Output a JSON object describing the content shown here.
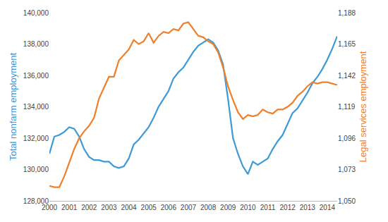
{
  "chart_data": {
    "type": "line",
    "x": [
      2000,
      2000.25,
      2000.5,
      2000.75,
      2001,
      2001.25,
      2001.5,
      2001.75,
      2002,
      2002.25,
      2002.5,
      2002.75,
      2003,
      2003.25,
      2003.5,
      2003.75,
      2004,
      2004.25,
      2004.5,
      2004.75,
      2005,
      2005.25,
      2005.5,
      2005.75,
      2006,
      2006.25,
      2006.5,
      2006.75,
      2007,
      2007.25,
      2007.5,
      2007.75,
      2008,
      2008.25,
      2008.5,
      2008.75,
      2009,
      2009.25,
      2009.5,
      2009.75,
      2010,
      2010.25,
      2010.5,
      2010.75,
      2011,
      2011.25,
      2011.5,
      2011.75,
      2012,
      2012.25,
      2012.5,
      2012.75,
      2013,
      2013.25,
      2013.5,
      2013.75,
      2014,
      2014.25,
      2014.5
    ],
    "series": [
      {
        "name": "Total nonfarm employment",
        "color": "#3c9ad6",
        "axis": "y",
        "values": [
          131000,
          132100,
          132200,
          132400,
          132700,
          132600,
          132100,
          131300,
          130800,
          130600,
          130600,
          130500,
          130500,
          130200,
          130100,
          130200,
          130700,
          131600,
          131900,
          132300,
          132700,
          133300,
          134000,
          134500,
          135000,
          135800,
          136200,
          136500,
          137000,
          137500,
          137900,
          138100,
          138300,
          138100,
          137600,
          136700,
          134500,
          132000,
          131000,
          130200,
          129700,
          130500,
          130300,
          130500,
          130700,
          131300,
          131800,
          132200,
          132900,
          133600,
          133900,
          134400,
          134900,
          135500,
          135900,
          136400,
          137000,
          137700,
          138500
        ]
      },
      {
        "name": "Legal services employment",
        "color": "#f07f2a",
        "axis": "y2",
        "values": [
          1061,
          1060,
          1060,
          1068,
          1078,
          1088,
          1096,
          1101,
          1105,
          1111,
          1125,
          1133,
          1141,
          1141,
          1153,
          1157,
          1161,
          1168,
          1165,
          1167,
          1173,
          1166,
          1171,
          1174,
          1173,
          1176,
          1175,
          1180,
          1181,
          1176,
          1171,
          1170,
          1167,
          1165,
          1159,
          1148,
          1134,
          1124,
          1115,
          1110,
          1113,
          1112,
          1113,
          1117,
          1115,
          1114,
          1117,
          1117,
          1119,
          1122,
          1127,
          1130,
          1134,
          1137,
          1136,
          1137,
          1137,
          1136,
          1135
        ]
      }
    ],
    "y_label": "Total nonfarm employment",
    "y2_label": "Legal services employment",
    "xlim": [
      2000,
      2014.5
    ],
    "xticks": [
      2000,
      2001,
      2002,
      2003,
      2004,
      2005,
      2006,
      2007,
      2008,
      2009,
      2010,
      2011,
      2012,
      2013,
      2014
    ],
    "ylim": [
      128000,
      140000
    ],
    "yticks": [
      {
        "value": 128000,
        "label": "128,000"
      },
      {
        "value": 130000,
        "label": "130,000"
      },
      {
        "value": 132000,
        "label": "132,000"
      },
      {
        "value": 134000,
        "label": "134,000"
      },
      {
        "value": 136000,
        "label": "136,000"
      },
      {
        "value": 138000,
        "label": "138,000"
      },
      {
        "value": 140000,
        "label": "140,000"
      }
    ],
    "y2lim": [
      1050,
      1188
    ],
    "y2ticks": [
      {
        "value": 1050,
        "label": "1,050"
      },
      {
        "value": 1073,
        "label": "1,073"
      },
      {
        "value": 1096,
        "label": "1,096"
      },
      {
        "value": 1119,
        "label": "1,119"
      },
      {
        "value": 1142,
        "label": "1,142"
      },
      {
        "value": 1165,
        "label": "1,165"
      },
      {
        "value": 1188,
        "label": "1,188"
      }
    ],
    "grid": false
  }
}
